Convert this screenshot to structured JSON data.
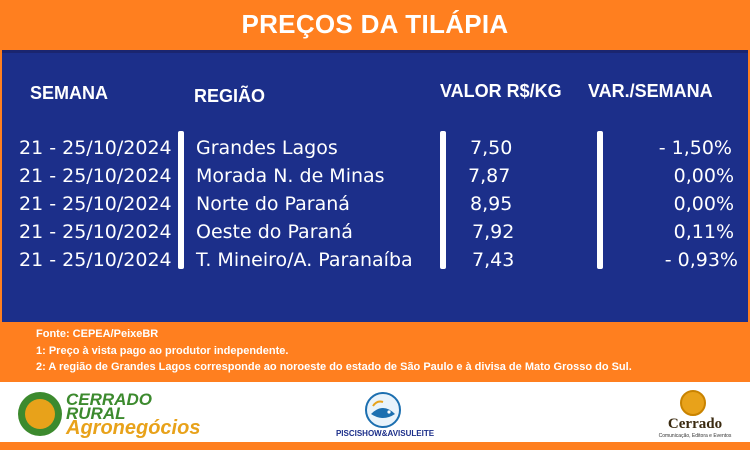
{
  "header": {
    "title": "PREÇOS DA TILÁPIA"
  },
  "table": {
    "columns": {
      "week": "SEMANA",
      "region": "REGIÃO",
      "value": "VALOR R$/KG",
      "variation": "VAR./SEMANA"
    },
    "rows": [
      {
        "week": "21 - 25/10/2024",
        "region": "Grandes Lagos",
        "value": "7,50",
        "variation": "- 1,50%"
      },
      {
        "week": "21 - 25/10/2024",
        "region": "Morada N. de Minas",
        "value": "7,87",
        "variation": "0,00%"
      },
      {
        "week": "21 - 25/10/2024",
        "region": "Norte do Paraná",
        "value": "8,95",
        "variation": "0,00%"
      },
      {
        "week": "21 - 25/10/2024",
        "region": "Oeste do Paraná",
        "value": "7,92",
        "variation": "0,11%"
      },
      {
        "week": "21 - 25/10/2024",
        "region": "T. Mineiro/A. Paranaíba",
        "value": "7,43",
        "variation": "- 0,93%"
      }
    ]
  },
  "notes": {
    "source": "Fonte: CEPEA/PeixeBR",
    "note1": "1: Preço à vista pago ao produtor independente.",
    "note2": "2: A região de Grandes Lagos corresponde ao noroeste do estado de São Paulo e à divisa de Mato Grosso do Sul."
  },
  "footer": {
    "logo_cerrado_rural": {
      "line1": "CERRADO",
      "line2": "RURAL",
      "line3": "Agronegócios"
    },
    "logo_piscishow": {
      "text": "PISCISHOW&AVISULEITE"
    },
    "logo_cerrado": {
      "name": "Cerrado",
      "subtitle": "Comunicação, Editora e Eventos"
    }
  },
  "colors": {
    "orange": "#ff7f1f",
    "navy": "#1c2f8a",
    "white": "#ffffff"
  }
}
